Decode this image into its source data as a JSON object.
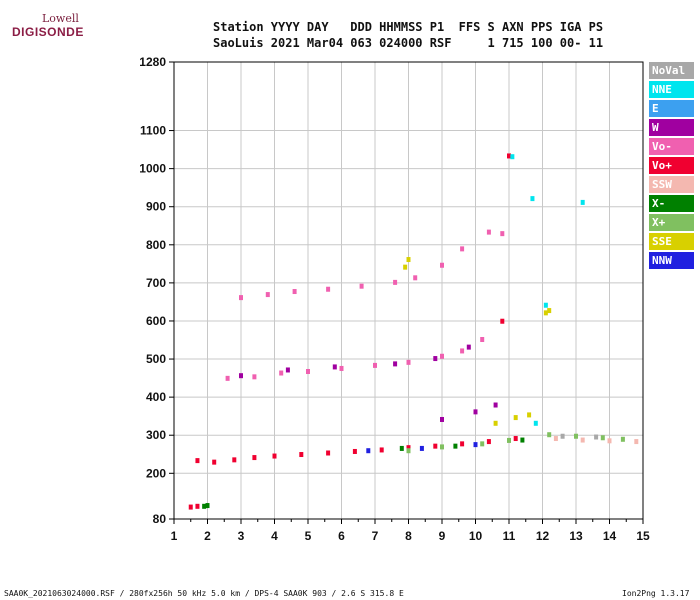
{
  "logo": {
    "top": "Lowell",
    "main": "DIGISONDE"
  },
  "header": {
    "line1": "Station YYYY DAY   DDD HHMMSS P1  FFS S AXN PPS IGA PS",
    "line2": "SaoLuis 2021 Mar04 063 024000 RSF     1 715 100 00- 11"
  },
  "legend": [
    {
      "label": "NoVal",
      "color": "#a8a8a8"
    },
    {
      "label": "NNE",
      "color": "#00e5ee"
    },
    {
      "label": "E",
      "color": "#3ca0f0"
    },
    {
      "label": "W",
      "color": "#a000a0"
    },
    {
      "label": "Vo-",
      "color": "#f060b0"
    },
    {
      "label": "Vo+",
      "color": "#f00030"
    },
    {
      "label": "SSW",
      "color": "#f4b8b0"
    },
    {
      "label": "X-",
      "color": "#008000"
    },
    {
      "label": "X+",
      "color": "#80c060"
    },
    {
      "label": "SSE",
      "color": "#d8d000"
    },
    {
      "label": "NNW",
      "color": "#2020e0"
    }
  ],
  "footer": {
    "left": "SAA0K_2021063024000.RSF / 280fx256h 50 kHz 5.0 km / DPS-4 SAA0K 903 / 2.6 S 315.8 E",
    "right": "Ion2Png 1.3.17"
  },
  "chart_data": {
    "type": "scatter",
    "xlim": [
      1,
      15
    ],
    "ylim": [
      80,
      1280
    ],
    "x_ticks": [
      1,
      2,
      3,
      4,
      5,
      6,
      7,
      8,
      9,
      10,
      11,
      12,
      13,
      14,
      15
    ],
    "y_ticks": [
      80,
      200,
      300,
      400,
      500,
      600,
      700,
      800,
      900,
      1000,
      1100,
      1280
    ],
    "grid": true,
    "series": [
      {
        "color": "#f00030",
        "points": [
          [
            1.7,
            232
          ],
          [
            2.2,
            228
          ],
          [
            2.8,
            234
          ],
          [
            3.4,
            240
          ],
          [
            4.0,
            244
          ],
          [
            4.8,
            248
          ],
          [
            5.6,
            252
          ],
          [
            6.4,
            256
          ],
          [
            7.2,
            260
          ],
          [
            8.0,
            266
          ],
          [
            8.8,
            270
          ],
          [
            9.6,
            276
          ],
          [
            10.4,
            282
          ],
          [
            11.2,
            290
          ],
          [
            1.5,
            110
          ],
          [
            1.7,
            112
          ],
          [
            10.8,
            598
          ],
          [
            11.0,
            1032
          ]
        ]
      },
      {
        "color": "#f060b0",
        "points": [
          [
            2.6,
            448
          ],
          [
            3.4,
            452
          ],
          [
            4.2,
            462
          ],
          [
            5.0,
            466
          ],
          [
            6.0,
            474
          ],
          [
            7.0,
            482
          ],
          [
            8.0,
            490
          ],
          [
            9.0,
            506
          ],
          [
            9.6,
            520
          ],
          [
            10.2,
            550
          ],
          [
            3.0,
            660
          ],
          [
            3.8,
            668
          ],
          [
            4.6,
            676
          ],
          [
            5.6,
            682
          ],
          [
            6.6,
            690
          ],
          [
            7.6,
            700
          ],
          [
            8.2,
            712
          ],
          [
            9.0,
            745
          ],
          [
            9.6,
            788
          ],
          [
            10.4,
            832
          ],
          [
            10.8,
            828
          ]
        ]
      },
      {
        "color": "#a000a0",
        "points": [
          [
            3.0,
            455
          ],
          [
            4.4,
            470
          ],
          [
            5.8,
            478
          ],
          [
            7.6,
            486
          ],
          [
            8.8,
            500
          ],
          [
            9.8,
            530
          ],
          [
            9.0,
            340
          ],
          [
            10.0,
            360
          ],
          [
            10.6,
            378
          ]
        ]
      },
      {
        "color": "#80c060",
        "points": [
          [
            8.0,
            258
          ],
          [
            9.0,
            268
          ],
          [
            10.2,
            276
          ],
          [
            11.0,
            285
          ],
          [
            12.2,
            300
          ],
          [
            13.0,
            296
          ],
          [
            13.8,
            292
          ],
          [
            14.4,
            288
          ]
        ]
      },
      {
        "color": "#008000",
        "points": [
          [
            1.9,
            112
          ],
          [
            2.0,
            114
          ],
          [
            7.8,
            264
          ],
          [
            9.4,
            270
          ],
          [
            11.4,
            286
          ]
        ]
      },
      {
        "color": "#d8d000",
        "points": [
          [
            10.6,
            330
          ],
          [
            11.2,
            345
          ],
          [
            11.6,
            352
          ],
          [
            12.1,
            620
          ],
          [
            12.2,
            626
          ],
          [
            7.9,
            740
          ],
          [
            8.0,
            760
          ]
        ]
      },
      {
        "color": "#f4b8b0",
        "points": [
          [
            12.4,
            290
          ],
          [
            13.2,
            286
          ],
          [
            14.0,
            284
          ],
          [
            14.8,
            282
          ]
        ]
      },
      {
        "color": "#00e5ee",
        "points": [
          [
            11.1,
            1030
          ],
          [
            11.8,
            330
          ],
          [
            12.1,
            640
          ],
          [
            13.2,
            910
          ],
          [
            11.7,
            920
          ]
        ]
      },
      {
        "color": "#2020e0",
        "points": [
          [
            6.8,
            258
          ],
          [
            8.4,
            264
          ],
          [
            10.0,
            274
          ]
        ]
      },
      {
        "color": "#a8a8a8",
        "points": [
          [
            12.6,
            296
          ],
          [
            13.6,
            294
          ]
        ]
      }
    ]
  }
}
